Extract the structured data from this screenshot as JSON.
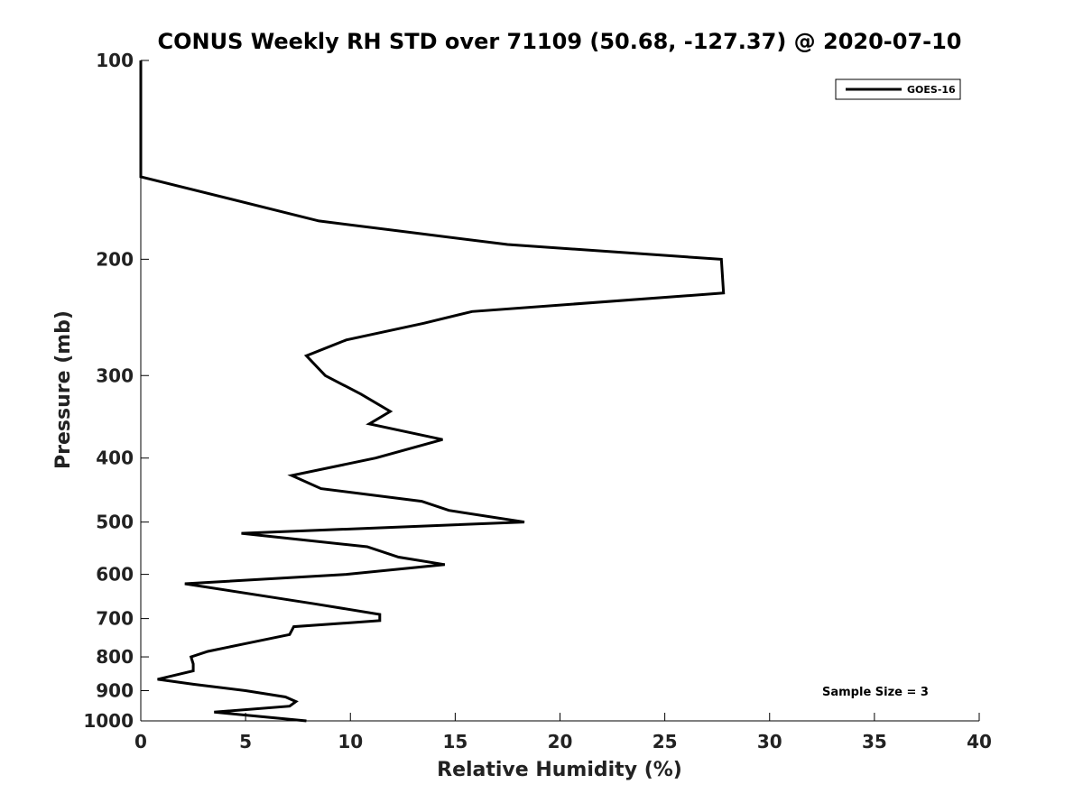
{
  "chart_data": {
    "type": "line",
    "title": "CONUS Weekly RH STD over 71109 (50.68, -127.37) @ 2020-07-10",
    "xlabel": "Relative Humidity (%)",
    "ylabel": "Pressure (mb)",
    "xlim": [
      0,
      40
    ],
    "ylim": [
      100,
      1000
    ],
    "y_scale": "log",
    "y_reversed": true,
    "x_ticks": [
      0,
      5,
      10,
      15,
      20,
      25,
      30,
      35,
      40
    ],
    "y_ticks": [
      100,
      200,
      300,
      400,
      500,
      600,
      700,
      800,
      900,
      1000
    ],
    "grid": false,
    "legend_position": "top-right",
    "annotation": "Sample Size = 3",
    "series": [
      {
        "name": "GOES-16",
        "color": "#000000",
        "points": [
          [
            0,
            100
          ],
          [
            0,
            150
          ],
          [
            8.5,
            175
          ],
          [
            17.5,
            190
          ],
          [
            27.7,
            200
          ],
          [
            27.8,
            225
          ],
          [
            15.8,
            240
          ],
          [
            13.5,
            250
          ],
          [
            9.8,
            265
          ],
          [
            7.9,
            280
          ],
          [
            8.8,
            300
          ],
          [
            10.5,
            320
          ],
          [
            11.9,
            340
          ],
          [
            10.9,
            355
          ],
          [
            14.4,
            375
          ],
          [
            11.2,
            400
          ],
          [
            7.2,
            425
          ],
          [
            8.6,
            445
          ],
          [
            13.4,
            465
          ],
          [
            14.7,
            480
          ],
          [
            18.3,
            500
          ],
          [
            4.8,
            520
          ],
          [
            10.8,
            545
          ],
          [
            12.3,
            565
          ],
          [
            14.5,
            580
          ],
          [
            9.8,
            600
          ],
          [
            2.1,
            620
          ],
          [
            8.3,
            665
          ],
          [
            11.4,
            690
          ],
          [
            11.4,
            705
          ],
          [
            7.3,
            720
          ],
          [
            7.1,
            740
          ],
          [
            4.9,
            765
          ],
          [
            3.2,
            785
          ],
          [
            2.4,
            800
          ],
          [
            2.5,
            820
          ],
          [
            2.5,
            840
          ],
          [
            0.8,
            865
          ],
          [
            2.5,
            880
          ],
          [
            5.0,
            900
          ],
          [
            6.9,
            920
          ],
          [
            7.4,
            935
          ],
          [
            7.1,
            950
          ],
          [
            3.5,
            970
          ],
          [
            5.0,
            980
          ],
          [
            7.9,
            1000
          ]
        ]
      }
    ]
  }
}
